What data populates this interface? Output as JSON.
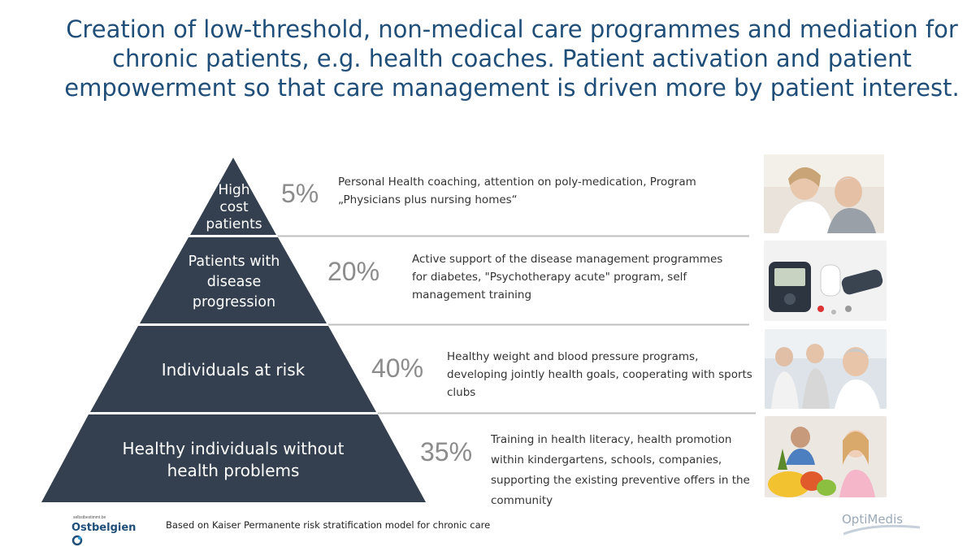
{
  "title": "Creation of low-threshold, non-medical care programmes and mediation for chronic patients, e.g. health coaches. Patient activation and patient empowerment so that care management is driven more by patient interest.",
  "colors": {
    "tier": "#34404f",
    "title": "#1f4e79",
    "percent": "#8c8c8c",
    "rule": "#bfbfbf"
  },
  "tiers": [
    {
      "label": "High cost patients",
      "percent": "5%",
      "description": "Personal Health coaching, attention on poly-medication, Program „Physicians plus nursing homes“",
      "photo": "elderly-care-photo"
    },
    {
      "label": "Patients with disease progression",
      "percent": "20%",
      "description": "Active support of the disease management programmes for diabetes, \"Psychotherapy acute\" program, self management training",
      "photo": "glucose-meter-photo"
    },
    {
      "label": "Individuals at risk",
      "percent": "40%",
      "description": "Healthy weight and blood pressure programs, developing jointly health goals, cooperating with sports clubs",
      "photo": "seniors-exercise-photo"
    },
    {
      "label": "Healthy individuals without health problems",
      "percent": "35%",
      "description": "Training in health literacy, health promotion within kindergartens, schools, companies, supporting the existing preventive offers in the community",
      "photo": "children-fruit-photo"
    }
  ],
  "footnote": "Based on Kaiser Permanente risk stratification model for chronic care",
  "logos": {
    "left_small": "selbstbestimmt.be",
    "left_main": "Ostbelgien",
    "right": "OptiMedis"
  }
}
